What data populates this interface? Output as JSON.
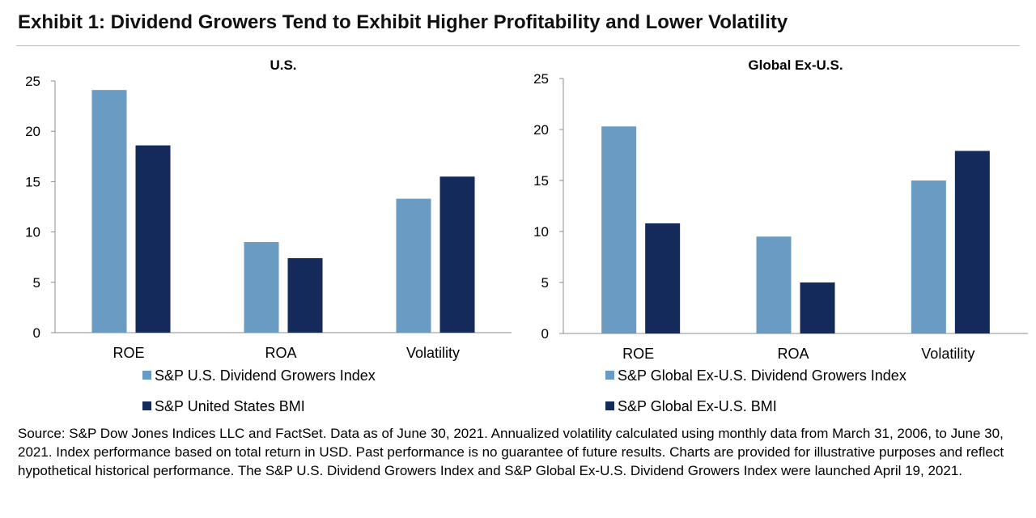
{
  "exhibit_title": "Exhibit 1: Dividend Growers Tend to Exhibit Higher Profitability and Lower Volatility",
  "chart_data": [
    {
      "type": "bar",
      "title": "U.S.",
      "categories": [
        "ROE",
        "ROA",
        "Volatility"
      ],
      "series": [
        {
          "name": "S&P U.S. Dividend Growers Index",
          "color": "#6a9bc3",
          "values": [
            24.1,
            9.0,
            13.3
          ]
        },
        {
          "name": "S&P United States BMI",
          "color": "#132a5a",
          "values": [
            18.6,
            7.4,
            15.5
          ]
        }
      ],
      "yticks": [
        "0",
        "5",
        "10",
        "15",
        "20",
        "25"
      ],
      "ylim": [
        0,
        25
      ],
      "xlabel": "",
      "ylabel": "",
      "legend": "bottom"
    },
    {
      "type": "bar",
      "title": "Global Ex-U.S.",
      "categories": [
        "ROE",
        "ROA",
        "Volatility"
      ],
      "series": [
        {
          "name": "S&P Global Ex-U.S. Dividend Growers Index",
          "color": "#6a9bc3",
          "values": [
            20.3,
            9.5,
            15.0
          ]
        },
        {
          "name": "S&P Global Ex-U.S. BMI",
          "color": "#132a5a",
          "values": [
            10.8,
            5.0,
            17.9
          ]
        }
      ],
      "yticks": [
        "0",
        "5",
        "10",
        "15",
        "20",
        "25"
      ],
      "ylim": [
        0,
        25
      ],
      "xlabel": "",
      "ylabel": "",
      "legend": "bottom"
    }
  ],
  "source_note": "Source: S&P Dow Jones Indices LLC and FactSet. Data as of June 30, 2021. Annualized volatility calculated using monthly data from March 31, 2006, to June 30, 2021. Index performance based on total return in USD. Past performance is no guarantee of future results. Charts are provided for illustrative purposes and reflect hypothetical historical performance. The S&P U.S. Dividend Growers Index and S&P Global Ex-U.S. Dividend Growers Index were launched April 19, 2021."
}
